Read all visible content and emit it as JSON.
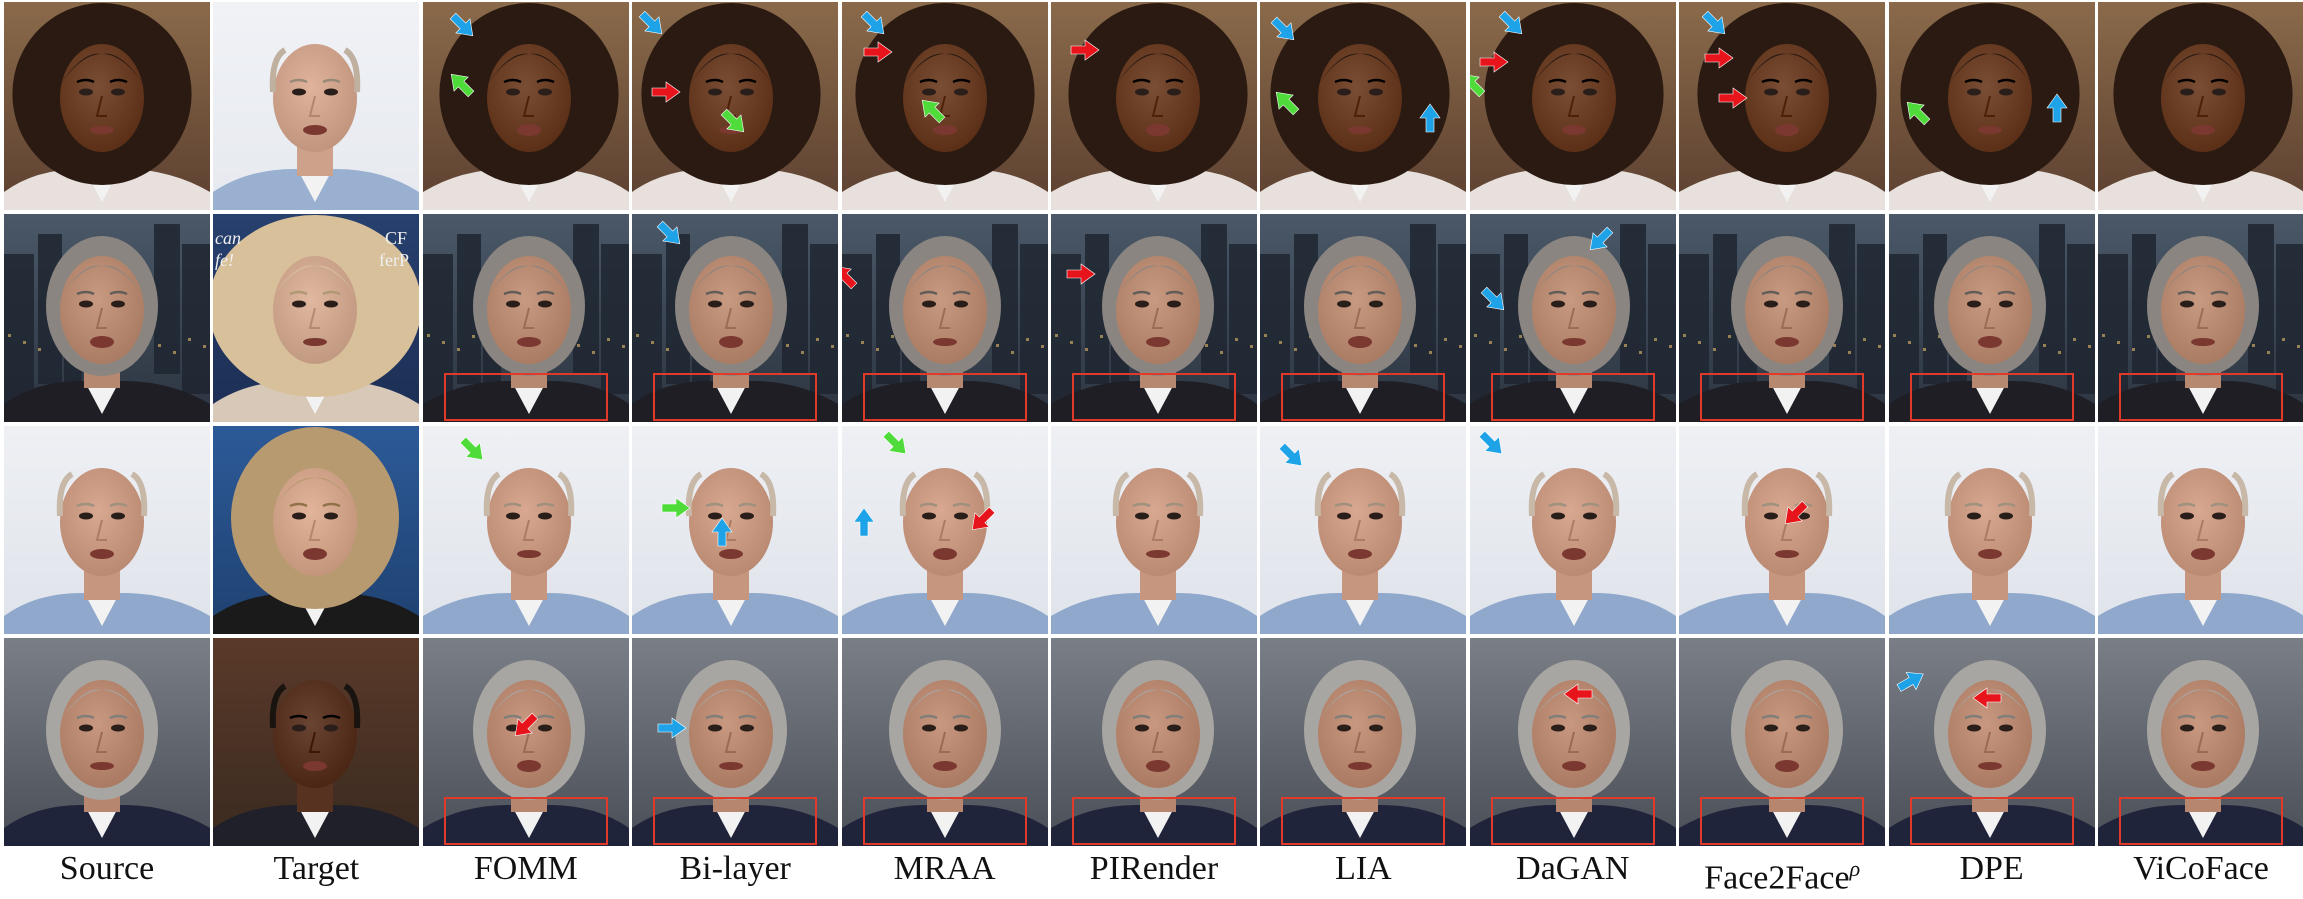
{
  "columns": [
    {
      "key": "source",
      "label": "Source",
      "sup": ""
    },
    {
      "key": "target",
      "label": "Target",
      "sup": ""
    },
    {
      "key": "fomm",
      "label": "FOMM",
      "sup": ""
    },
    {
      "key": "bilayer",
      "label": "Bi-layer",
      "sup": ""
    },
    {
      "key": "mraa",
      "label": "MRAA",
      "sup": ""
    },
    {
      "key": "pirender",
      "label": "PIRender",
      "sup": ""
    },
    {
      "key": "lia",
      "label": "LIA",
      "sup": ""
    },
    {
      "key": "dagan",
      "label": "DaGAN",
      "sup": ""
    },
    {
      "key": "face2face",
      "label": "Face2Face",
      "sup": "ρ"
    },
    {
      "key": "dpe",
      "label": "DPE",
      "sup": ""
    },
    {
      "key": "vicoface",
      "label": "ViCoFace",
      "sup": ""
    }
  ],
  "rows": [
    {
      "key": "row1",
      "subject": "woman-curly-hair",
      "target": "bald-man",
      "highlight_box": false
    },
    {
      "key": "row2",
      "subject": "man-city-background",
      "target": "blonde-woman-blue-background",
      "highlight_box": true
    },
    {
      "key": "row3",
      "subject": "bald-man-light-background",
      "target": "woman-dark-blue-background",
      "highlight_box": false
    },
    {
      "key": "row4",
      "subject": "gray-hair-man-office",
      "target": "man-bookshelf",
      "highlight_box": true
    }
  ],
  "colors": {
    "arrow_blue": "#1fa3e8",
    "arrow_green": "#4fdc3a",
    "arrow_red": "#e8141b",
    "box_red": "#e23a2a"
  },
  "target_text": {
    "row2_left": "can\nfe!",
    "row2_right": "CF\nferP"
  }
}
